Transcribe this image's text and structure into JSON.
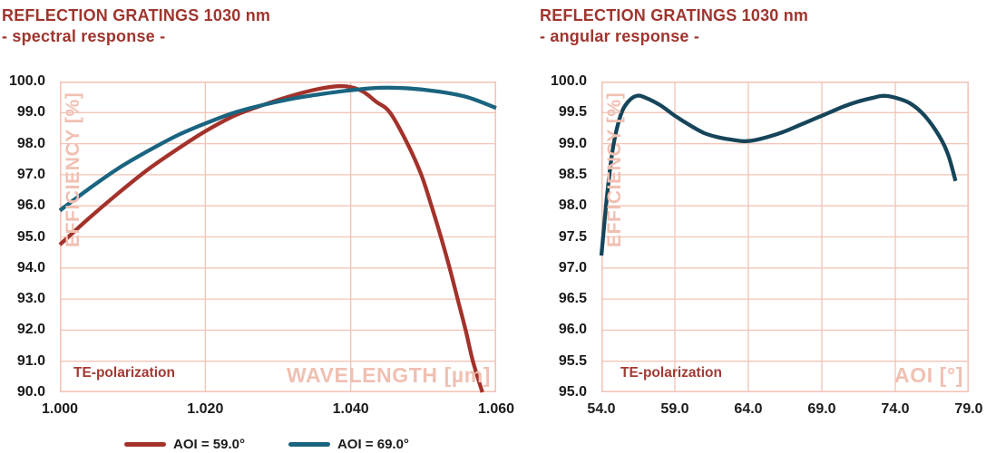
{
  "colors": {
    "background": "#FFFFFF",
    "title": "#9F352E",
    "grid": "#F2C4B7",
    "axis_watermark": "#F0C0B2",
    "annotation": "#A33A33",
    "tick_text": "#1B1B1B",
    "curve_red": "#A3322B",
    "curve_teal": "#1A6480",
    "curve_dark_teal": "#16455A"
  },
  "chart_data": [
    {
      "type": "line",
      "title": "REFLECTION GRATINGS 1030 nm",
      "subtitle": "- spectral response -",
      "xlabel": "WAVELENGTH [µm]",
      "ylabel": "EFFICIENCY [%]",
      "annotation": "TE-polarization",
      "xlim": [
        1.0,
        1.06
      ],
      "ylim": [
        90.0,
        100.0
      ],
      "grid": true,
      "legend_position": "bottom",
      "xticks": {
        "values": [
          1.0,
          1.02,
          1.04,
          1.06
        ],
        "labels": [
          "1.000",
          "1.020",
          "1.040",
          "1.060"
        ]
      },
      "yticks": {
        "values": [
          100.0,
          99.0,
          98.0,
          97.0,
          96.0,
          95.0,
          94.0,
          93.0,
          92.0,
          91.0,
          90.0
        ],
        "labels": [
          "100.0",
          "99.0",
          "98.0",
          "97.0",
          "96.0",
          "95.0",
          "94.0",
          "93.0",
          "92.0",
          "91.0",
          "90.0"
        ]
      },
      "series": [
        {
          "name": "AOI = 59.0°",
          "color": "#A3322B",
          "points": [
            [
              1.0,
              94.75
            ],
            [
              1.004,
              95.6
            ],
            [
              1.008,
              96.4
            ],
            [
              1.012,
              97.15
            ],
            [
              1.016,
              97.8
            ],
            [
              1.02,
              98.4
            ],
            [
              1.024,
              98.9
            ],
            [
              1.028,
              99.25
            ],
            [
              1.032,
              99.55
            ],
            [
              1.036,
              99.78
            ],
            [
              1.039,
              99.85
            ],
            [
              1.0415,
              99.7
            ],
            [
              1.0435,
              99.35
            ],
            [
              1.0454,
              99.0
            ],
            [
              1.0478,
              98.0
            ],
            [
              1.0497,
              97.0
            ],
            [
              1.0511,
              96.0
            ],
            [
              1.0524,
              95.0
            ],
            [
              1.0536,
              94.0
            ],
            [
              1.0547,
              93.0
            ],
            [
              1.0558,
              92.0
            ],
            [
              1.0568,
              91.0
            ],
            [
              1.0581,
              90.0
            ]
          ]
        },
        {
          "name": "AOI = 69.0°",
          "color": "#1A6480",
          "points": [
            [
              1.0,
              95.85
            ],
            [
              1.004,
              96.55
            ],
            [
              1.008,
              97.2
            ],
            [
              1.012,
              97.75
            ],
            [
              1.016,
              98.25
            ],
            [
              1.02,
              98.65
            ],
            [
              1.024,
              99.0
            ],
            [
              1.028,
              99.25
            ],
            [
              1.032,
              99.45
            ],
            [
              1.036,
              99.6
            ],
            [
              1.04,
              99.72
            ],
            [
              1.044,
              99.8
            ],
            [
              1.048,
              99.78
            ],
            [
              1.052,
              99.68
            ],
            [
              1.056,
              99.5
            ],
            [
              1.06,
              99.15
            ]
          ]
        }
      ]
    },
    {
      "type": "line",
      "title": "REFLECTION GRATINGS 1030 nm",
      "subtitle": "- angular response -",
      "xlabel": "AOI [°]",
      "ylabel": "EFFICIENCY [%]",
      "annotation": "TE-polarization",
      "xlim": [
        54.0,
        79.0
      ],
      "ylim": [
        95.0,
        100.0
      ],
      "grid": true,
      "legend_position": "none",
      "xticks": {
        "values": [
          54.0,
          59.0,
          64.0,
          69.0,
          74.0,
          79.0
        ],
        "labels": [
          "54.0",
          "59.0",
          "64.0",
          "69.0",
          "74.0",
          "79.0"
        ]
      },
      "yticks": {
        "values": [
          100.0,
          99.5,
          99.0,
          98.5,
          98.0,
          97.5,
          97.0,
          96.5,
          96.0,
          95.5,
          95.0
        ],
        "labels": [
          "100.0",
          "99.5",
          "99.0",
          "98.5",
          "98.0",
          "97.5",
          "97.0",
          "96.5",
          "96.0",
          "95.5",
          "95.0"
        ]
      },
      "series": [
        {
          "name": "",
          "color": "#16455A",
          "points": [
            [
              54.0,
              97.2
            ],
            [
              54.4,
              98.2
            ],
            [
              54.8,
              98.95
            ],
            [
              55.3,
              99.45
            ],
            [
              55.8,
              99.67
            ],
            [
              56.4,
              99.77
            ],
            [
              57.0,
              99.74
            ],
            [
              58.0,
              99.62
            ],
            [
              59.0,
              99.45
            ],
            [
              60.0,
              99.3
            ],
            [
              61.0,
              99.17
            ],
            [
              62.0,
              99.1
            ],
            [
              63.0,
              99.06
            ],
            [
              63.7,
              99.04
            ],
            [
              64.5,
              99.06
            ],
            [
              65.5,
              99.12
            ],
            [
              66.5,
              99.2
            ],
            [
              67.5,
              99.3
            ],
            [
              68.5,
              99.4
            ],
            [
              69.5,
              99.5
            ],
            [
              70.5,
              99.6
            ],
            [
              71.5,
              99.68
            ],
            [
              72.5,
              99.74
            ],
            [
              73.2,
              99.77
            ],
            [
              74.0,
              99.74
            ],
            [
              75.0,
              99.65
            ],
            [
              76.0,
              99.45
            ],
            [
              77.0,
              99.12
            ],
            [
              77.6,
              98.82
            ],
            [
              78.1,
              98.4
            ]
          ]
        }
      ]
    }
  ]
}
